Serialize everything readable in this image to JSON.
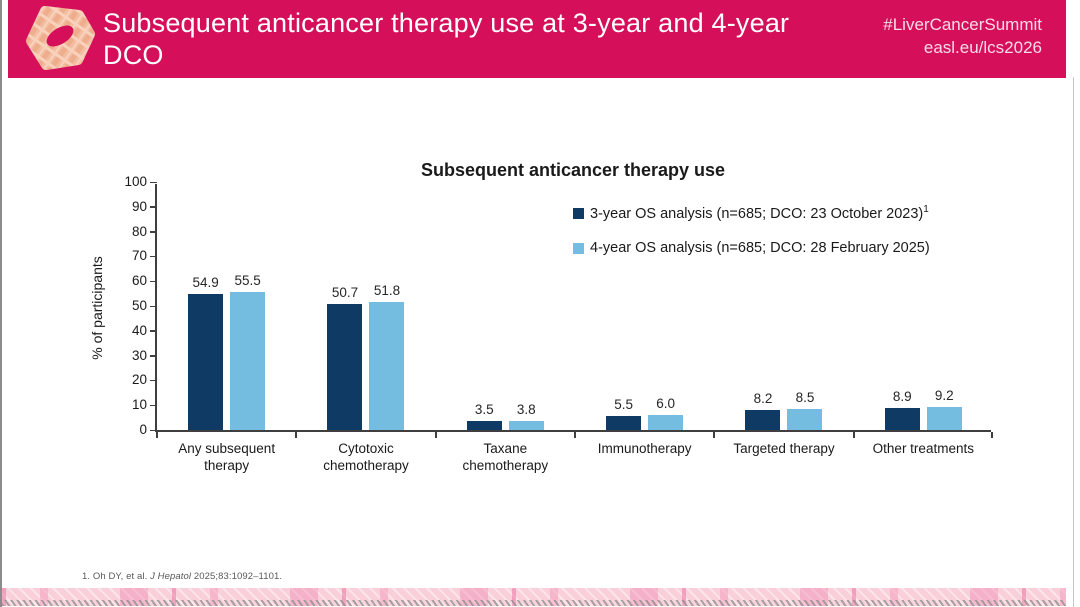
{
  "header": {
    "title": "Subsequent anticancer therapy use at 3-year and 4-year DCO",
    "hashtag": "#LiverCancerSummit",
    "url": "easl.eu/lcs2026",
    "bg_color": "#d50f5a",
    "logo": "easl-liver-cancer-summit-logo"
  },
  "chart_data": {
    "type": "bar",
    "title": "Subsequent anticancer therapy use",
    "xlabel": "",
    "ylabel": "% of participants",
    "ylim": [
      0,
      100
    ],
    "ytick_step": 10,
    "grid": false,
    "legend_position": "top-right",
    "categories": [
      "Any subsequent\ntherapy",
      "Cytotoxic\nchemotherapy",
      "Taxane\nchemotherapy",
      "Immunotherapy",
      "Targeted therapy",
      "Other treatments"
    ],
    "series": [
      {
        "name": "3-year OS analysis (n=685; DCO: 23 October 2023)",
        "name_superscript": "1",
        "color": "#0e3a63",
        "values": [
          54.9,
          50.7,
          3.5,
          5.5,
          8.2,
          8.9
        ]
      },
      {
        "name": "4-year OS analysis (n=685; DCO: 28 February 2025)",
        "name_superscript": "",
        "color": "#74bce0",
        "values": [
          55.5,
          51.8,
          3.8,
          6.0,
          8.5,
          9.2
        ]
      }
    ]
  },
  "footnote": {
    "text_before_journal": "1. Oh DY, et al. ",
    "journal_italic": "J Hepatol",
    "text_after_journal": " 2025;83:1092–1101."
  }
}
